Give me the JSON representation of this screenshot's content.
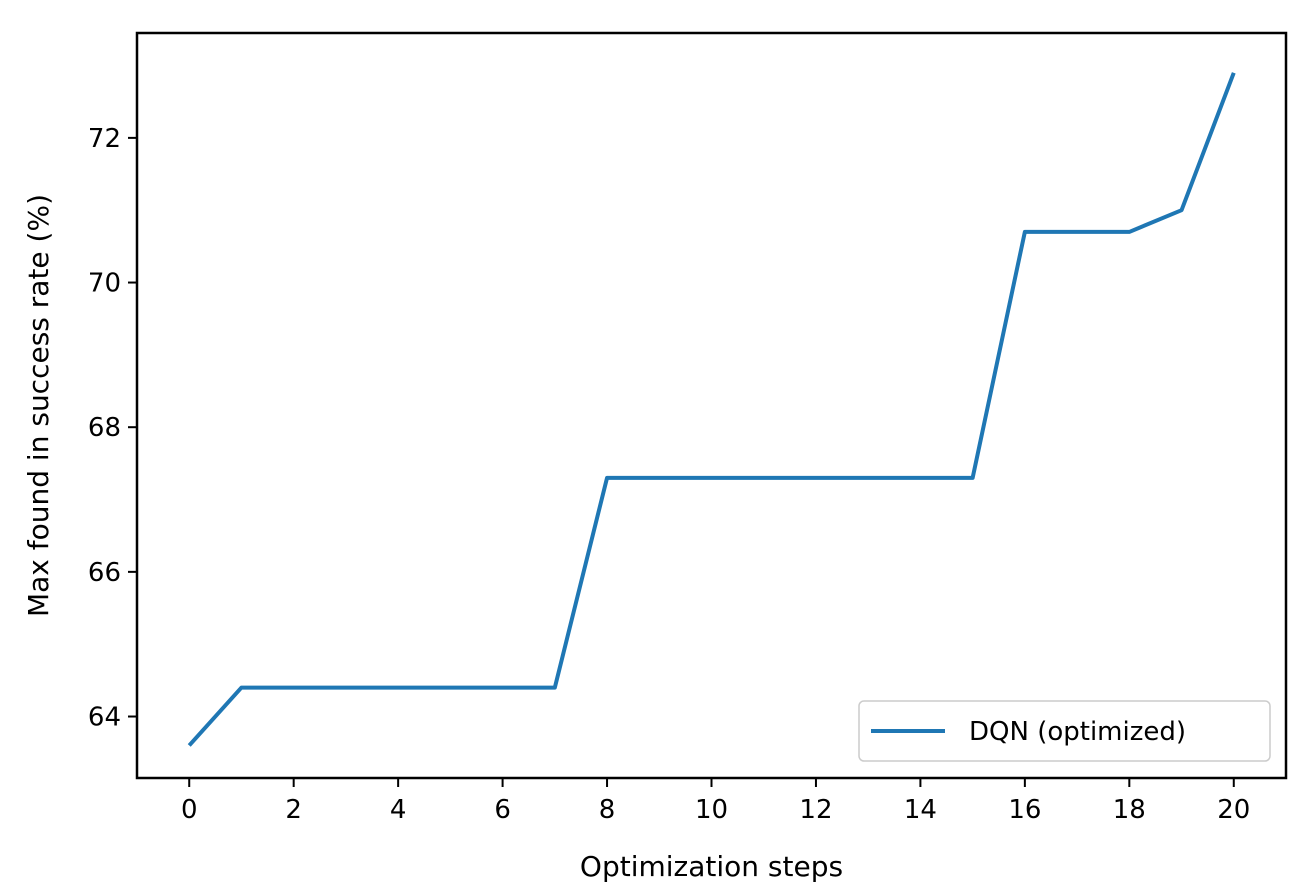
{
  "chart_data": {
    "type": "line",
    "xlabel": "Optimization steps",
    "ylabel": "Max found in success rate (%)",
    "xlim": [
      -1,
      21
    ],
    "ylim": [
      63.15,
      73.45
    ],
    "xticks": [
      0,
      2,
      4,
      6,
      8,
      10,
      12,
      14,
      16,
      18,
      20
    ],
    "yticks": [
      64,
      66,
      68,
      70,
      72
    ],
    "legend": {
      "position": "bottom-right"
    },
    "series": [
      {
        "name": "DQN (optimized)",
        "color": "#1f77b4",
        "x": [
          0,
          1,
          2,
          3,
          4,
          5,
          6,
          7,
          8,
          9,
          10,
          11,
          12,
          13,
          14,
          15,
          16,
          17,
          18,
          19,
          20
        ],
        "values": [
          63.6,
          64.4,
          64.4,
          64.4,
          64.4,
          64.4,
          64.4,
          64.4,
          67.3,
          67.3,
          67.3,
          67.3,
          67.3,
          67.3,
          67.3,
          67.3,
          70.7,
          70.7,
          70.7,
          71.0,
          72.9
        ]
      }
    ]
  }
}
